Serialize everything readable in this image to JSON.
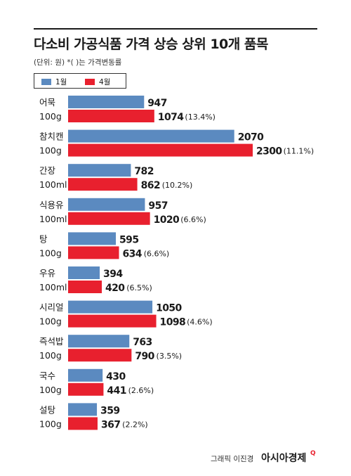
{
  "header": {
    "title": "다소비 가공식품 가격 상승 상위 10개 품목",
    "subtitle": "(단위: 원) *( )는 가격변동률"
  },
  "legend": {
    "jan_label": "1월",
    "apr_label": "4월"
  },
  "colors": {
    "jan": "#5b8ac0",
    "apr": "#e8202e"
  },
  "footer": {
    "credit": "그래픽 이진경",
    "brand": "아시아경제",
    "logo_mark": "Q"
  },
  "chart_data": {
    "type": "bar",
    "orientation": "horizontal",
    "title": "다소비 가공식품 가격 상승 상위 10개 품목",
    "unit_note": "(단위: 원) *( )는 가격변동률",
    "legend_position": "top-left",
    "grid": false,
    "categories": [
      {
        "name": "어묵",
        "unit": "100g"
      },
      {
        "name": "참치캔",
        "unit": "100g"
      },
      {
        "name": "간장",
        "unit": "100ml"
      },
      {
        "name": "식용유",
        "unit": "100ml"
      },
      {
        "name": "탕",
        "unit": "100g"
      },
      {
        "name": "우유",
        "unit": "100ml"
      },
      {
        "name": "시리얼",
        "unit": "100g"
      },
      {
        "name": "즉석밥",
        "unit": "100g"
      },
      {
        "name": "국수",
        "unit": "100g"
      },
      {
        "name": "설탕",
        "unit": "100g"
      }
    ],
    "series": [
      {
        "name": "1월",
        "values": [
          947,
          2070,
          782,
          957,
          595,
          394,
          1050,
          763,
          430,
          359
        ]
      },
      {
        "name": "4월",
        "values": [
          1074,
          2300,
          862,
          1020,
          634,
          420,
          1098,
          790,
          441,
          367
        ]
      }
    ],
    "change_labels": [
      "(13.4%)",
      "(11.1%)",
      "(10.2%)",
      "(6.6%)",
      "(6.6%)",
      "(6.5%)",
      "(4.6%)",
      "(3.5%)",
      "(2.6%)",
      "(2.2%)"
    ]
  }
}
